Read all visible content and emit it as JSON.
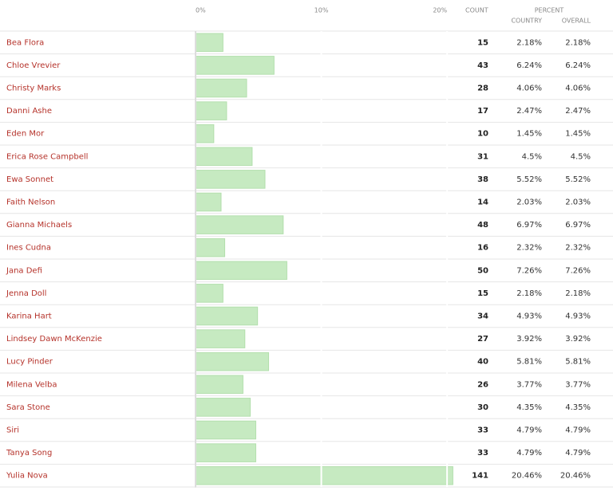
{
  "axis": {
    "lim": [
      0,
      20.5
    ],
    "ticks": [
      {
        "value": 0,
        "label": "0%"
      },
      {
        "value": 10,
        "label": "10%"
      },
      {
        "value": 20,
        "label": "20%"
      }
    ]
  },
  "headers": {
    "count": "COUNT",
    "percent": "PERCENT",
    "country": "COUNTRY",
    "overall": "OVERALL"
  },
  "rows": [
    {
      "name": "Bea Flora",
      "count": 15,
      "country": {
        "value": 2.18,
        "label": "2.18%"
      },
      "overall": {
        "value": 2.18,
        "label": "2.18%"
      }
    },
    {
      "name": "Chloe Vrevier",
      "count": 43,
      "country": {
        "value": 6.24,
        "label": "6.24%"
      },
      "overall": {
        "value": 6.24,
        "label": "6.24%"
      }
    },
    {
      "name": "Christy Marks",
      "count": 28,
      "country": {
        "value": 4.06,
        "label": "4.06%"
      },
      "overall": {
        "value": 4.06,
        "label": "4.06%"
      }
    },
    {
      "name": "Danni Ashe",
      "count": 17,
      "country": {
        "value": 2.47,
        "label": "2.47%"
      },
      "overall": {
        "value": 2.47,
        "label": "2.47%"
      }
    },
    {
      "name": "Eden Mor",
      "count": 10,
      "country": {
        "value": 1.45,
        "label": "1.45%"
      },
      "overall": {
        "value": 1.45,
        "label": "1.45%"
      }
    },
    {
      "name": "Erica Rose Campbell",
      "count": 31,
      "country": {
        "value": 4.5,
        "label": "4.5%"
      },
      "overall": {
        "value": 4.5,
        "label": "4.5%"
      }
    },
    {
      "name": "Ewa Sonnet",
      "count": 38,
      "country": {
        "value": 5.52,
        "label": "5.52%"
      },
      "overall": {
        "value": 5.52,
        "label": "5.52%"
      }
    },
    {
      "name": "Faith Nelson",
      "count": 14,
      "country": {
        "value": 2.03,
        "label": "2.03%"
      },
      "overall": {
        "value": 2.03,
        "label": "2.03%"
      }
    },
    {
      "name": "Gianna Michaels",
      "count": 48,
      "country": {
        "value": 6.97,
        "label": "6.97%"
      },
      "overall": {
        "value": 6.97,
        "label": "6.97%"
      }
    },
    {
      "name": "Ines Cudna",
      "count": 16,
      "country": {
        "value": 2.32,
        "label": "2.32%"
      },
      "overall": {
        "value": 2.32,
        "label": "2.32%"
      }
    },
    {
      "name": "Jana Defi",
      "count": 50,
      "country": {
        "value": 7.26,
        "label": "7.26%"
      },
      "overall": {
        "value": 7.26,
        "label": "7.26%"
      }
    },
    {
      "name": "Jenna Doll",
      "count": 15,
      "country": {
        "value": 2.18,
        "label": "2.18%"
      },
      "overall": {
        "value": 2.18,
        "label": "2.18%"
      }
    },
    {
      "name": "Karina Hart",
      "count": 34,
      "country": {
        "value": 4.93,
        "label": "4.93%"
      },
      "overall": {
        "value": 4.93,
        "label": "4.93%"
      }
    },
    {
      "name": "Lindsey Dawn McKenzie",
      "count": 27,
      "country": {
        "value": 3.92,
        "label": "3.92%"
      },
      "overall": {
        "value": 3.92,
        "label": "3.92%"
      }
    },
    {
      "name": "Lucy Pinder",
      "count": 40,
      "country": {
        "value": 5.81,
        "label": "5.81%"
      },
      "overall": {
        "value": 5.81,
        "label": "5.81%"
      }
    },
    {
      "name": "Milena Velba",
      "count": 26,
      "country": {
        "value": 3.77,
        "label": "3.77%"
      },
      "overall": {
        "value": 3.77,
        "label": "3.77%"
      }
    },
    {
      "name": "Sara Stone",
      "count": 30,
      "country": {
        "value": 4.35,
        "label": "4.35%"
      },
      "overall": {
        "value": 4.35,
        "label": "4.35%"
      }
    },
    {
      "name": "Siri",
      "count": 33,
      "country": {
        "value": 4.79,
        "label": "4.79%"
      },
      "overall": {
        "value": 4.79,
        "label": "4.79%"
      }
    },
    {
      "name": "Tanya Song",
      "count": 33,
      "country": {
        "value": 4.79,
        "label": "4.79%"
      },
      "overall": {
        "value": 4.79,
        "label": "4.79%"
      }
    },
    {
      "name": "Yulia Nova",
      "count": 141,
      "country": {
        "value": 20.46,
        "label": "20.46%"
      },
      "overall": {
        "value": 20.46,
        "label": "20.46%"
      }
    }
  ]
}
